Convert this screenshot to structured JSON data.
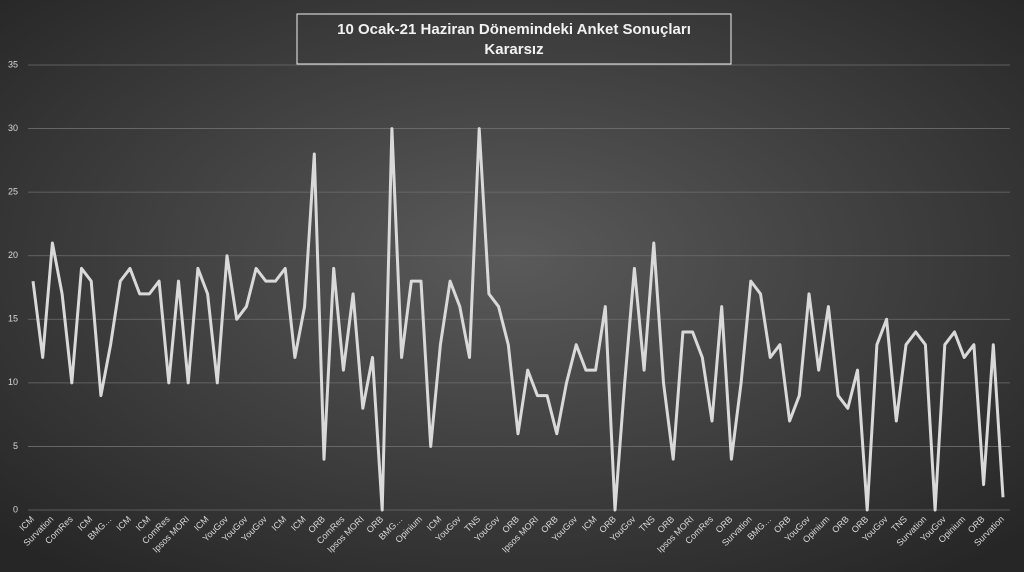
{
  "chart_data": {
    "type": "line",
    "title": "10 Ocak-21 Haziran Dönemindeki Anket Sonuçları",
    "subtitle": "Kararsız",
    "categories": [
      "ICM",
      null,
      "Survation",
      null,
      "ComRes",
      null,
      "ICM",
      null,
      "BMG…",
      null,
      "ICM",
      null,
      "ICM",
      null,
      "ComRes",
      null,
      "Ipsos MORI",
      null,
      "ICM",
      null,
      "YouGov",
      null,
      "YouGov",
      null,
      "YouGov",
      null,
      "ICM",
      null,
      "ICM",
      null,
      "ORB",
      null,
      "ComRes",
      null,
      "Ipsos MORI",
      null,
      "ORB",
      null,
      "BMG…",
      null,
      "Opinium",
      null,
      "ICM",
      null,
      "YouGov",
      null,
      "TNS",
      null,
      "YouGov",
      null,
      "ORB",
      null,
      "Ipsos MORI",
      null,
      "ORB",
      null,
      "YouGov",
      null,
      "ICM",
      null,
      "ORB",
      null,
      "YouGov",
      null,
      "TNS",
      null,
      "ORB",
      null,
      "Ipsos MORI",
      null,
      "ComRes",
      null,
      "ORB",
      null,
      "Survation",
      null,
      "BMG…",
      null,
      "ORB",
      null,
      "YouGov",
      null,
      "Opinium",
      null,
      "ORB",
      null,
      "ORB",
      null,
      "YouGov",
      null,
      "TNS",
      null,
      "Survation",
      null,
      "YouGov",
      null,
      "Opinium",
      null,
      "ORB",
      null,
      "Survation"
    ],
    "values": [
      18,
      12,
      21,
      17,
      10,
      19,
      18,
      9,
      13,
      18,
      19,
      17,
      17,
      18,
      10,
      18,
      10,
      19,
      17,
      10,
      20,
      15,
      16,
      19,
      18,
      18,
      19,
      12,
      16,
      28,
      4,
      19,
      11,
      17,
      8,
      12,
      0,
      30,
      12,
      18,
      18,
      5,
      13,
      18,
      16,
      12,
      30,
      17,
      16,
      13,
      6,
      11,
      9,
      9,
      6,
      10,
      13,
      11,
      11,
      16,
      0,
      10,
      19,
      11,
      21,
      10,
      4,
      14,
      14,
      12,
      7,
      16,
      4,
      10,
      18,
      17,
      12,
      13,
      7,
      9,
      17,
      11,
      16,
      9,
      8,
      11,
      0,
      13,
      15,
      7,
      13,
      14,
      13,
      0,
      13,
      14,
      12,
      13,
      2,
      13,
      1
    ],
    "color": "#d9d9d9",
    "ylim": [
      0,
      35
    ],
    "yticks": [
      0,
      5,
      10,
      15,
      20,
      25,
      30,
      35
    ],
    "grid": true
  }
}
